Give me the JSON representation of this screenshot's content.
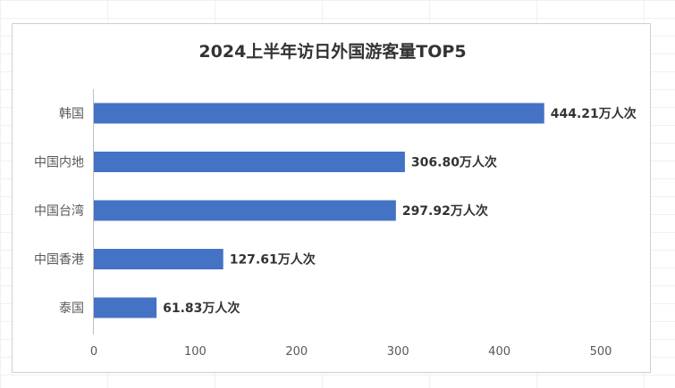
{
  "chart_data": {
    "type": "bar",
    "orientation": "horizontal",
    "title": "2024上半年访日外国游客量TOP5",
    "categories": [
      "韩国",
      "中国内地",
      "中国台湾",
      "中国香港",
      "泰国"
    ],
    "values": [
      444.21,
      306.8,
      297.92,
      127.61,
      61.83
    ],
    "data_labels": [
      "444.21万人次",
      "306.80万人次",
      "297.92万人次",
      "127.61万人次",
      "61.83万人次"
    ],
    "xlim": [
      0,
      500
    ],
    "x_ticks": [
      "0",
      "100",
      "200",
      "300",
      "400",
      "500"
    ],
    "grid": false,
    "legend": "none",
    "bar_color": "#4472C4"
  }
}
